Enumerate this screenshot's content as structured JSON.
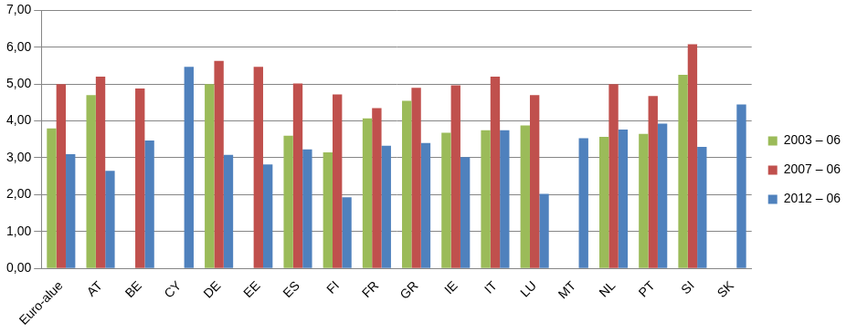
{
  "chart_data": {
    "type": "bar",
    "categories": [
      "Euro-alue",
      "AT",
      "BE",
      "CY",
      "DE",
      "EE",
      "ES",
      "FI",
      "FR",
      "GR",
      "IE",
      "IT",
      "LU",
      "MT",
      "NL",
      "PT",
      "SI",
      "SK"
    ],
    "series": [
      {
        "name": "2003 – 06",
        "color": "#9bbb59",
        "values": [
          3.8,
          4.7,
          null,
          null,
          5.0,
          null,
          3.6,
          3.15,
          4.07,
          4.55,
          3.68,
          3.75,
          3.88,
          null,
          3.57,
          3.65,
          5.25,
          null
        ]
      },
      {
        "name": "2007 – 06",
        "color": "#c0504d",
        "values": [
          5.0,
          5.2,
          4.88,
          null,
          5.63,
          5.47,
          5.02,
          4.72,
          4.35,
          4.9,
          4.97,
          5.2,
          4.7,
          null,
          5.0,
          4.68,
          6.08,
          null
        ]
      },
      {
        "name": "2012 – 06",
        "color": "#4f81bd",
        "values": [
          3.1,
          2.65,
          3.47,
          5.47,
          3.08,
          2.82,
          3.23,
          1.93,
          3.33,
          3.4,
          3.02,
          3.75,
          2.02,
          3.53,
          3.77,
          3.93,
          3.3,
          4.45
        ]
      }
    ],
    "ylim": [
      0,
      7
    ],
    "yticks": [
      {
        "value": 0,
        "label": "0,00"
      },
      {
        "value": 1,
        "label": "1,00"
      },
      {
        "value": 2,
        "label": "2,00"
      },
      {
        "value": 3,
        "label": "3,00"
      },
      {
        "value": 4,
        "label": "4,00"
      },
      {
        "value": 5,
        "label": "5,00"
      },
      {
        "value": 6,
        "label": "6,00"
      },
      {
        "value": 7,
        "label": "7,00"
      }
    ],
    "grid": true,
    "legend": "right"
  }
}
